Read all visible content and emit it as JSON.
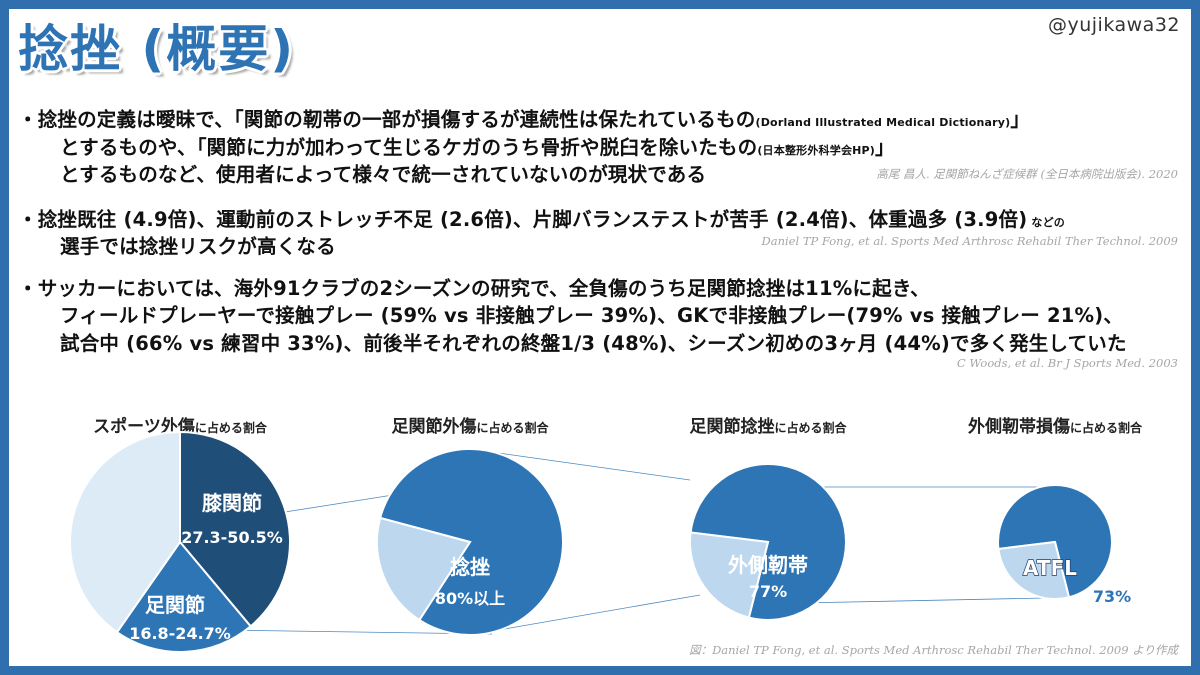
{
  "handle": "@yujikawa32",
  "title": "捻挫 (概要)",
  "bullets": [
    {
      "lines": [
        {
          "text": "・捻挫の定義は曖昧で、「関節の靭帯の一部が損傷するが連続性は保たれているもの",
          "small": "(Dorland Illustrated Medical Dictionary)",
          "tail": "」"
        },
        {
          "text": "とするものや、「関節に力が加わって生じるケガのうち骨折や脱臼を除いたもの",
          "small": "(日本整形外科学会HP)",
          "tail": "」"
        },
        {
          "text": "とするものなど、使用者によって様々で統一されていないのが現状である",
          "small": "",
          "tail": ""
        }
      ],
      "citation": "高尾 昌人. 足関節ねんざ症候群 (全日本病院出版会). 2020"
    },
    {
      "lines": [
        {
          "text": "・捻挫既往 (4.9倍)、運動前のストレッチ不足 (2.6倍)、片脚バランステストが苦手 (2.4倍)、体重過多 (3.9倍)",
          "small": " などの",
          "tail": ""
        },
        {
          "text": "選手では捻挫リスクが高くなる",
          "small": "",
          "tail": ""
        }
      ],
      "citation": "Daniel TP Fong, et al. Sports Med Arthrosc Rehabil Ther Technol. 2009"
    },
    {
      "lines": [
        {
          "text": "・サッカーにおいては、海外91クラブの2シーズンの研究で、全負傷のうち足関節捻挫は11%に起き、",
          "small": "",
          "tail": ""
        },
        {
          "text": "フィールドプレーヤーで接触プレー (59% vs 非接触プレー 39%)、GKで非接触プレー(79% vs 接触プレー 21%)、",
          "small": "",
          "tail": ""
        },
        {
          "text": "試合中 (66% vs 練習中 33%)、前後半それぞれの終盤1/3 (48%)、シーズン初めの3ヶ月 (44%)で多く発生していた",
          "small": "",
          "tail": ""
        }
      ],
      "citation": "C Woods, et al. Br J Sports Med. 2003"
    }
  ],
  "chart_data": [
    {
      "type": "pie",
      "title": "スポーツ外傷",
      "title_suffix": "に占める割合",
      "slices": [
        {
          "label": "膝関節",
          "value_label": "27.3-50.5%",
          "value": 38.9,
          "color": "#1f4e79"
        },
        {
          "label": "足関節",
          "value_label": "16.8-24.7%",
          "value": 20.8,
          "color": "#2e75b6"
        },
        {
          "label": "",
          "value_label": "",
          "value": 40.3,
          "color": "#ddebf7"
        }
      ]
    },
    {
      "type": "pie",
      "title": "足関節外傷",
      "title_suffix": "に占める割合",
      "slices": [
        {
          "label": "捻挫",
          "value_label": "80%以上",
          "value": 80,
          "color": "#2e75b6"
        },
        {
          "label": "",
          "value_label": "",
          "value": 20,
          "color": "#bdd7ee"
        }
      ]
    },
    {
      "type": "pie",
      "title": "足関節捻挫",
      "title_suffix": "に占める割合",
      "slices": [
        {
          "label": "外側靭帯",
          "value_label": "77%",
          "value": 77,
          "color": "#2e75b6"
        },
        {
          "label": "",
          "value_label": "",
          "value": 23,
          "color": "#bdd7ee"
        }
      ]
    },
    {
      "type": "pie",
      "title": "外側靭帯損傷",
      "title_suffix": "に占める割合",
      "slices": [
        {
          "label": "ATFL",
          "value_label": "73%",
          "value": 73,
          "color": "#2e75b6"
        },
        {
          "label": "",
          "value_label": "",
          "value": 27,
          "color": "#bdd7ee"
        }
      ]
    }
  ],
  "figure_citation": "図：Daniel TP Fong, et al. Sports Med Arthrosc Rehabil Ther Technol. 2009 より作成"
}
